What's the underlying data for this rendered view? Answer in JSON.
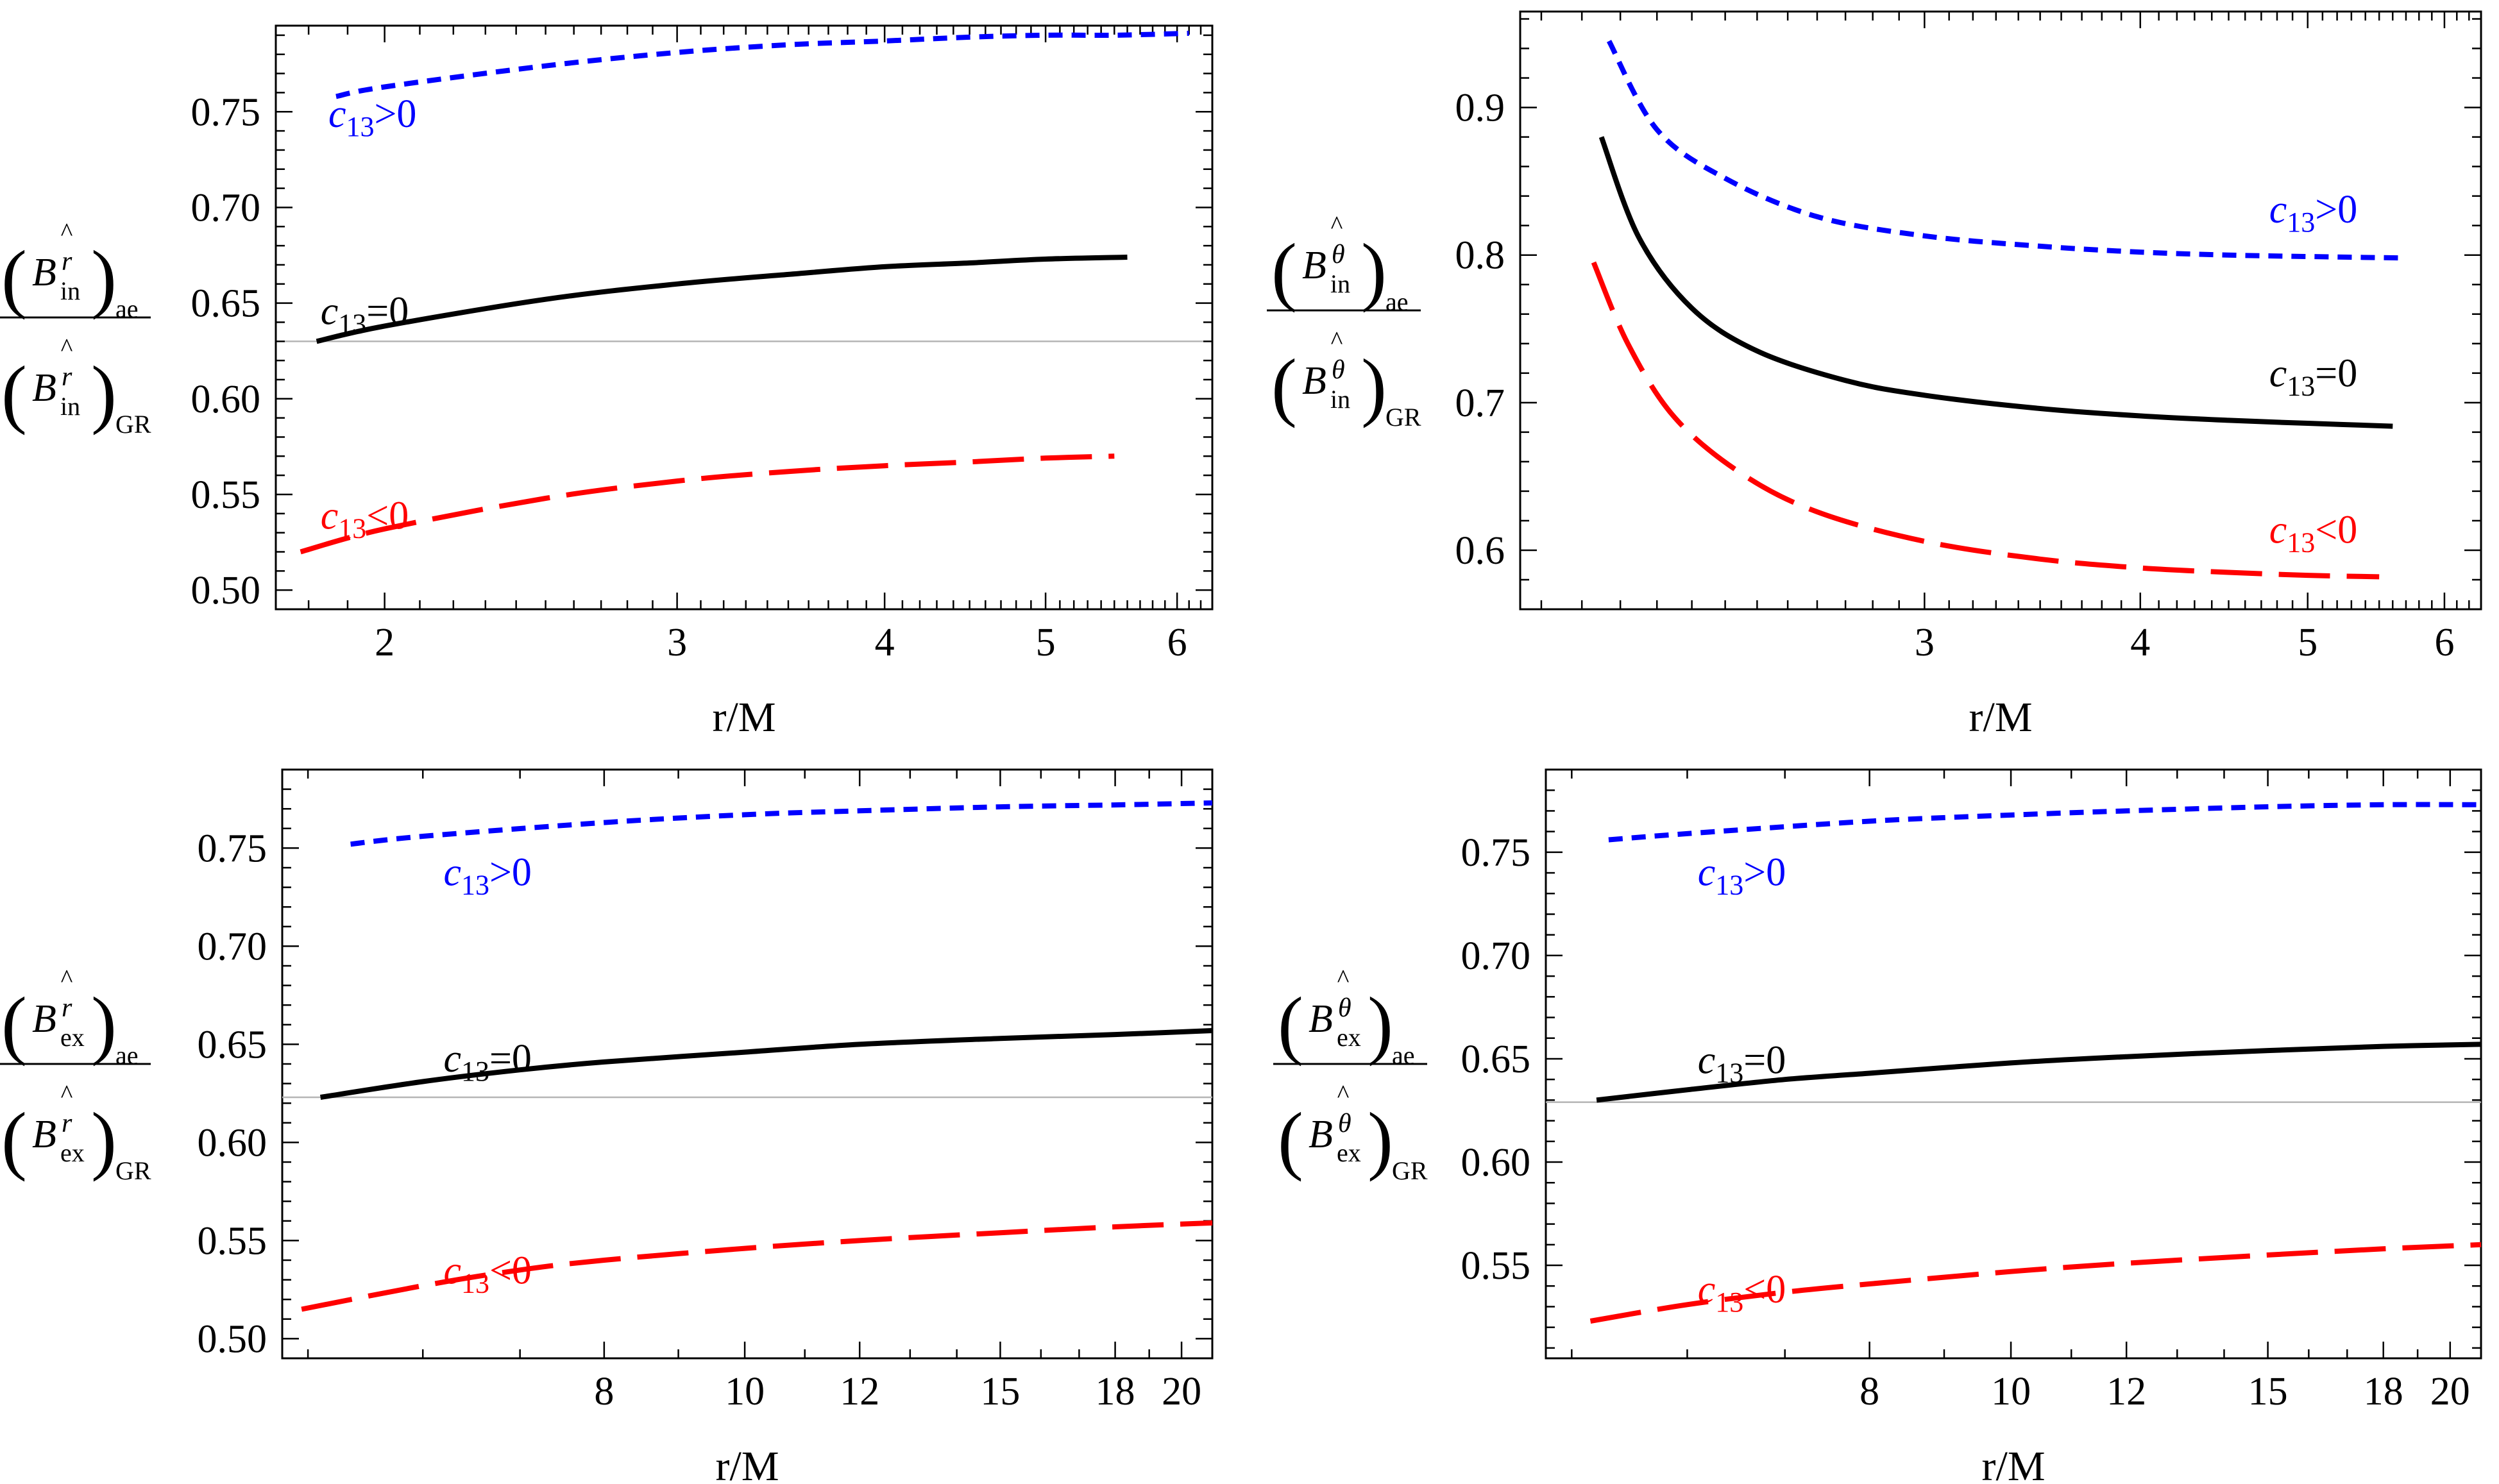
{
  "chart_data": [
    {
      "type": "line",
      "panel": "top-left",
      "xlabel": "r/M",
      "ylabel": {
        "symbol": "B",
        "superscript": "r",
        "subscript": "in",
        "numerator_subscript": "ae",
        "denominator_subscript": "GR"
      },
      "x_scale": "log",
      "xlim": [
        1.72,
        6.3
      ],
      "ylim": [
        0.49,
        0.795
      ],
      "xticks": [
        2,
        3,
        4,
        5,
        6
      ],
      "yticks": [
        0.5,
        0.55,
        0.6,
        0.65,
        0.7,
        0.75
      ],
      "ytick_labels": [
        "0.50",
        "0.55",
        "0.60",
        "0.65",
        "0.70",
        "0.75"
      ],
      "reference_line": 0.63,
      "series": [
        {
          "name": "c13>0",
          "label_parts": [
            "c",
            "13",
            ">0"
          ],
          "color": "#0000ff",
          "dash": "short",
          "label_at": [
            1.85,
            0.742
          ],
          "x": [
            1.87,
            2.0,
            2.5,
            3.0,
            3.5,
            4.0,
            4.5,
            5.0,
            5.5,
            6.1
          ],
          "y": [
            0.758,
            0.763,
            0.774,
            0.781,
            0.785,
            0.787,
            0.789,
            0.79,
            0.79,
            0.791
          ]
        },
        {
          "name": "c13=0",
          "label_parts": [
            "c",
            "13",
            "=0"
          ],
          "color": "#000000",
          "dash": "solid",
          "label_at": [
            1.83,
            0.639
          ],
          "x": [
            1.82,
            2.0,
            2.5,
            3.0,
            3.5,
            4.0,
            4.5,
            5.0,
            5.6
          ],
          "y": [
            0.63,
            0.638,
            0.652,
            0.66,
            0.665,
            0.669,
            0.671,
            0.673,
            0.674
          ]
        },
        {
          "name": "c13<0",
          "label_parts": [
            "c",
            "13",
            "<0"
          ],
          "color": "#ff0000",
          "dash": "long",
          "label_at": [
            1.83,
            0.532
          ],
          "x": [
            1.78,
            2.0,
            2.5,
            3.0,
            3.5,
            4.0,
            4.5,
            5.0,
            5.5
          ],
          "y": [
            0.52,
            0.532,
            0.548,
            0.557,
            0.562,
            0.565,
            0.567,
            0.569,
            0.57
          ]
        }
      ]
    },
    {
      "type": "line",
      "panel": "top-right",
      "xlabel": "r/M",
      "ylabel": {
        "symbol": "B",
        "superscript": "θ",
        "subscript": "in",
        "numerator_subscript": "ae",
        "denominator_subscript": "GR"
      },
      "x_scale": "log",
      "xlim": [
        1.75,
        6.3
      ],
      "ylim": [
        0.56,
        0.965
      ],
      "xticks": [
        3,
        4,
        5,
        6
      ],
      "yticks": [
        0.6,
        0.7,
        0.8,
        0.9
      ],
      "ytick_labels": [
        "0.6",
        "0.7",
        "0.8",
        "0.9"
      ],
      "series": [
        {
          "name": "c13>0",
          "label_parts": [
            "c",
            "13",
            ">0"
          ],
          "color": "#0000ff",
          "dash": "short",
          "label_at": [
            4.75,
            0.822
          ],
          "x": [
            1.97,
            2.1,
            2.3,
            2.6,
            3.0,
            3.5,
            4.0,
            4.5,
            5.0,
            5.7
          ],
          "y": [
            0.945,
            0.885,
            0.852,
            0.826,
            0.813,
            0.806,
            0.802,
            0.8,
            0.799,
            0.798
          ]
        },
        {
          "name": "c13=0",
          "label_parts": [
            "c",
            "13",
            "=0"
          ],
          "color": "#000000",
          "dash": "solid",
          "label_at": [
            4.75,
            0.711
          ],
          "x": [
            1.95,
            2.05,
            2.2,
            2.4,
            2.7,
            3.0,
            3.5,
            4.0,
            4.5,
            5.0,
            5.6
          ],
          "y": [
            0.88,
            0.812,
            0.764,
            0.735,
            0.715,
            0.705,
            0.696,
            0.691,
            0.688,
            0.686,
            0.684
          ]
        },
        {
          "name": "c13<0",
          "label_parts": [
            "c",
            "13",
            "<0"
          ],
          "color": "#ff0000",
          "dash": "long",
          "label_at": [
            4.75,
            0.605
          ],
          "x": [
            1.93,
            2.02,
            2.15,
            2.35,
            2.6,
            3.0,
            3.5,
            4.0,
            4.5,
            5.0,
            5.5
          ],
          "y": [
            0.795,
            0.74,
            0.69,
            0.652,
            0.626,
            0.606,
            0.594,
            0.588,
            0.585,
            0.583,
            0.582
          ]
        }
      ]
    },
    {
      "type": "line",
      "panel": "bottom-left",
      "xlabel": "r/M",
      "ylabel": {
        "symbol": "B",
        "superscript": "r",
        "subscript": "ex",
        "numerator_subscript": "ae",
        "denominator_subscript": "GR"
      },
      "x_scale": "log",
      "xlim": [
        4.8,
        21.0
      ],
      "ylim": [
        0.49,
        0.79
      ],
      "xticks": [
        8,
        10,
        12,
        15,
        18,
        20
      ],
      "yticks": [
        0.5,
        0.55,
        0.6,
        0.65,
        0.7,
        0.75
      ],
      "ytick_labels": [
        "0.50",
        "0.55",
        "0.60",
        "0.65",
        "0.70",
        "0.75"
      ],
      "reference_line": 0.623,
      "series": [
        {
          "name": "c13>0",
          "label_parts": [
            "c",
            "13",
            ">0"
          ],
          "color": "#0000ff",
          "dash": "short",
          "label_at": [
            6.2,
            0.731
          ],
          "x": [
            5.35,
            6,
            8,
            10,
            12,
            15,
            18,
            21
          ],
          "y": [
            0.752,
            0.756,
            0.763,
            0.767,
            0.769,
            0.771,
            0.772,
            0.773
          ]
        },
        {
          "name": "c13=0",
          "label_parts": [
            "c",
            "13",
            "=0"
          ],
          "color": "#000000",
          "dash": "solid",
          "label_at": [
            6.2,
            0.636
          ],
          "x": [
            5.1,
            6,
            7,
            8,
            10,
            12,
            15,
            18,
            21
          ],
          "y": [
            0.623,
            0.631,
            0.637,
            0.641,
            0.646,
            0.65,
            0.653,
            0.655,
            0.657
          ]
        },
        {
          "name": "c13<0",
          "label_parts": [
            "c",
            "13",
            "<0"
          ],
          "color": "#ff0000",
          "dash": "long",
          "label_at": [
            6.2,
            0.528
          ],
          "x": [
            4.95,
            6,
            7,
            8,
            10,
            12,
            15,
            18,
            21
          ],
          "y": [
            0.515,
            0.527,
            0.535,
            0.54,
            0.546,
            0.55,
            0.554,
            0.557,
            0.559
          ]
        }
      ]
    },
    {
      "type": "line",
      "panel": "bottom-right",
      "xlabel": "r/M",
      "ylabel": {
        "symbol": "B",
        "superscript": "θ",
        "subscript": "ex",
        "numerator_subscript": "ae",
        "denominator_subscript": "GR"
      },
      "x_scale": "log",
      "xlim": [
        4.8,
        21.0
      ],
      "ylim": [
        0.505,
        0.79
      ],
      "xticks": [
        8,
        10,
        12,
        15,
        18,
        20
      ],
      "yticks": [
        0.55,
        0.6,
        0.65,
        0.7,
        0.75
      ],
      "ytick_labels": [
        "0.55",
        "0.60",
        "0.65",
        "0.70",
        "0.75"
      ],
      "reference_line": 0.629,
      "series": [
        {
          "name": "c13>0",
          "label_parts": [
            "c",
            "13",
            ">0"
          ],
          "color": "#0000ff",
          "dash": "short",
          "label_at": [
            6.1,
            0.734
          ],
          "x": [
            5.3,
            6,
            8,
            10,
            12,
            15,
            18,
            21
          ],
          "y": [
            0.756,
            0.759,
            0.765,
            0.768,
            0.77,
            0.772,
            0.773,
            0.773
          ]
        },
        {
          "name": "c13=0",
          "label_parts": [
            "c",
            "13",
            "=0"
          ],
          "color": "#000000",
          "dash": "solid",
          "label_at": [
            6.1,
            0.643
          ],
          "x": [
            5.2,
            6,
            7,
            8,
            10,
            12,
            15,
            18,
            21
          ],
          "y": [
            0.63,
            0.635,
            0.64,
            0.643,
            0.648,
            0.651,
            0.654,
            0.656,
            0.657
          ]
        },
        {
          "name": "c13<0",
          "label_parts": [
            "c",
            "13",
            "<0"
          ],
          "color": "#ff0000",
          "dash": "long",
          "label_at": [
            6.1,
            0.532
          ],
          "x": [
            5.15,
            6,
            7,
            8,
            10,
            12,
            15,
            18,
            21
          ],
          "y": [
            0.523,
            0.531,
            0.537,
            0.541,
            0.547,
            0.551,
            0.555,
            0.558,
            0.56
          ]
        }
      ]
    }
  ]
}
